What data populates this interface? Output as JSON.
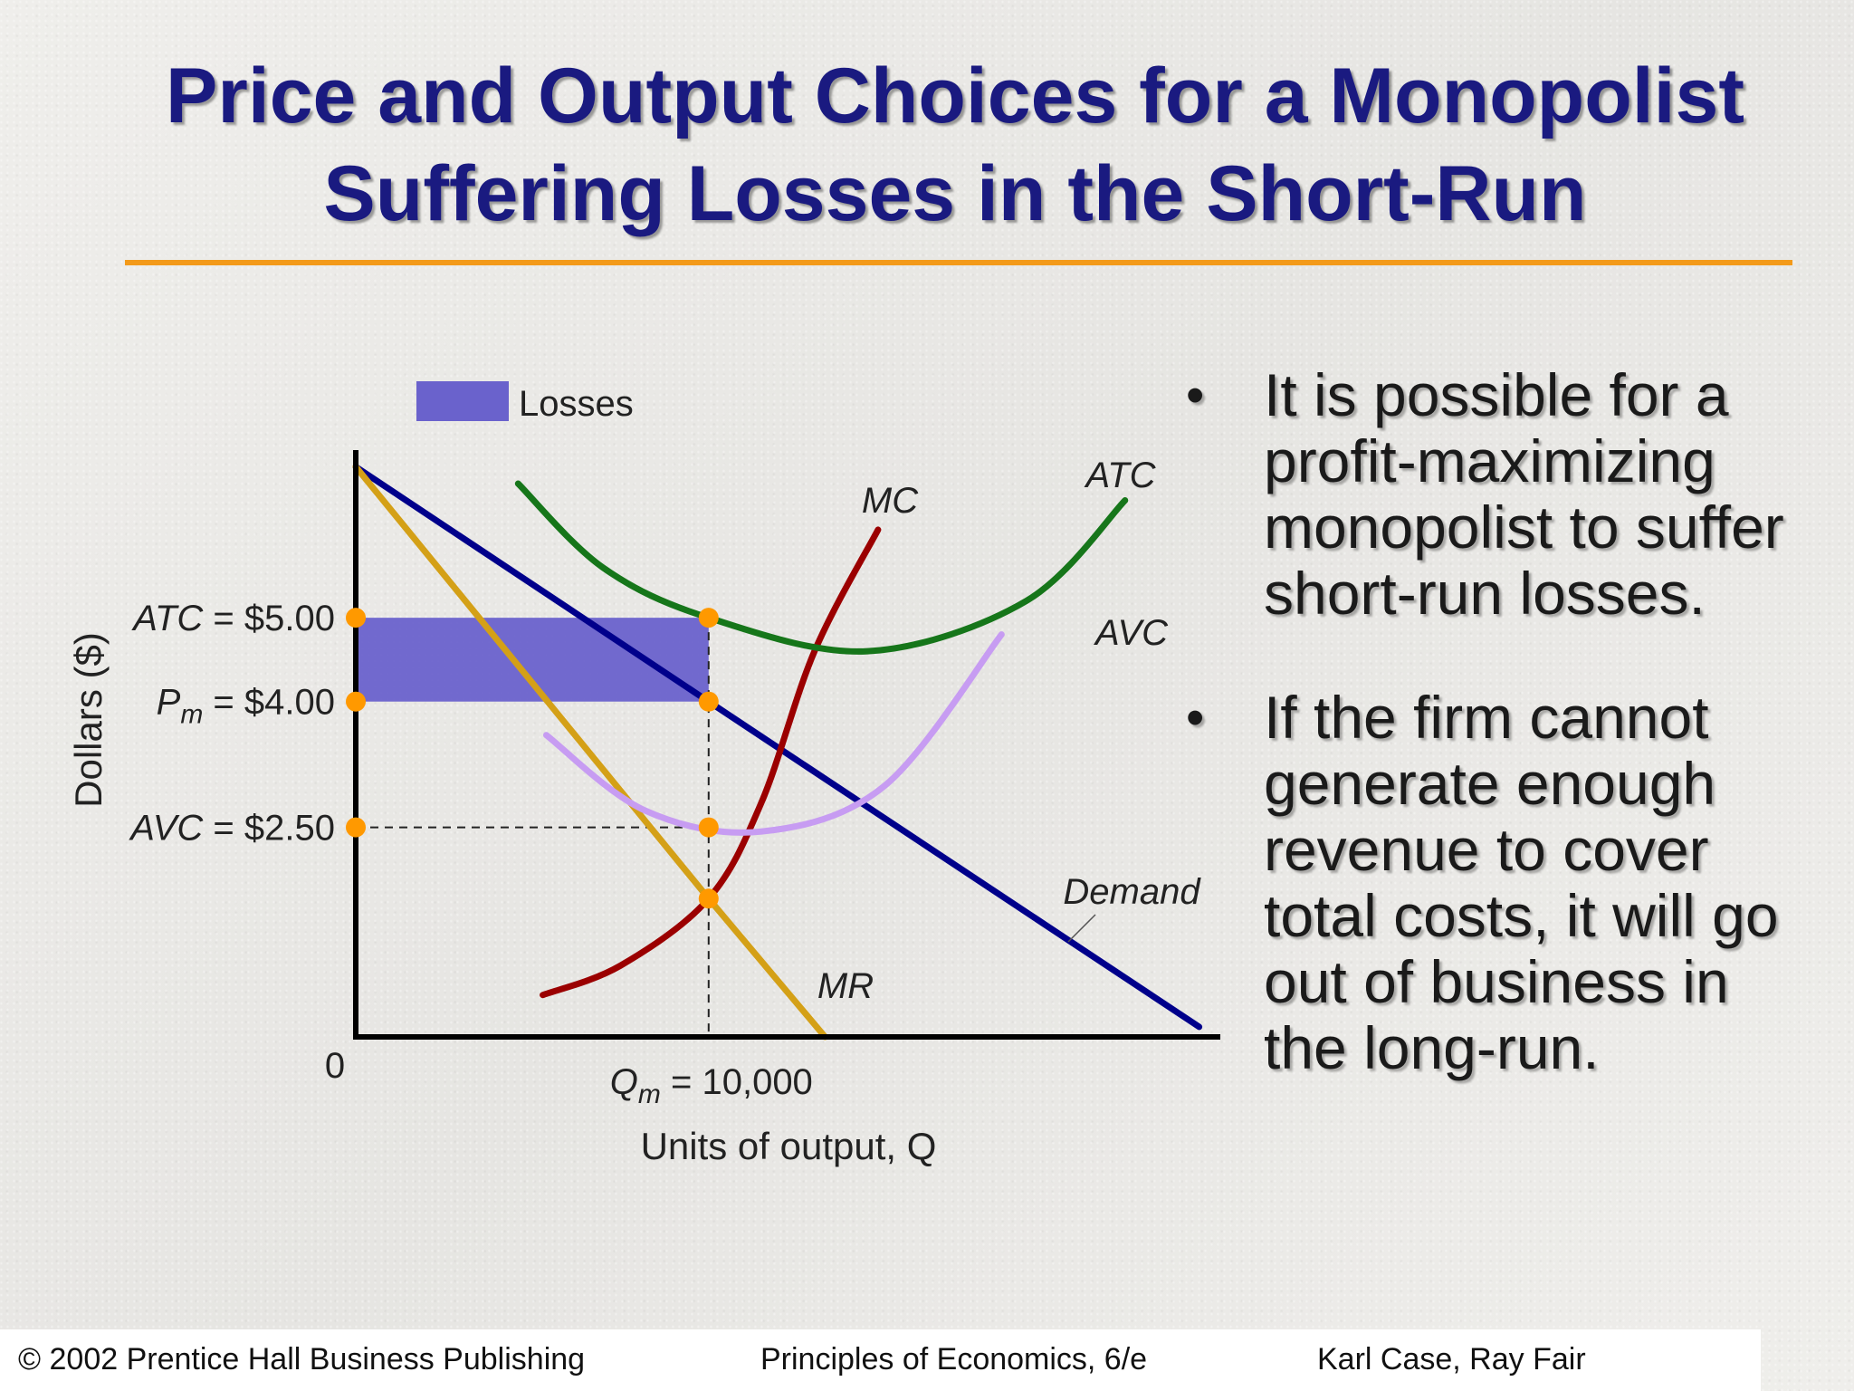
{
  "slide": {
    "title_line1": "Price and Output Choices for a Monopolist",
    "title_line2": "Suffering Losses in the Short-Run",
    "accent_color": "#f39a1a",
    "title_color": "#1a1a80"
  },
  "bullets": [
    "It is possible for a profit-maximizing monopolist to suffer short-run losses.",
    "If the firm cannot generate enough revenue to cover total costs, it will go out of business in the long-run."
  ],
  "footer": {
    "left": "© 2002 Prentice Hall Business Publishing",
    "center": "Principles of Economics, 6/e",
    "right": "Karl Case, Ray Fair"
  },
  "chart_data": {
    "type": "line",
    "xlabel": "Units of output, Q",
    "ylabel": "Dollars ($)",
    "origin_label": "0",
    "xlim": [
      0,
      24500
    ],
    "ylim": [
      0,
      7
    ],
    "legend": {
      "label": "Losses",
      "color": "#6a62cc",
      "placement": "top-left"
    },
    "y_markers": [
      {
        "name": "atc",
        "prefix": "ATC",
        "sub": "",
        "rest": " = $5.00",
        "value": 5.0
      },
      {
        "name": "pm",
        "prefix": "P",
        "sub": "m",
        "rest": " = $4.00",
        "value": 4.0
      },
      {
        "name": "avc",
        "prefix": "AVC",
        "sub": "",
        "rest": " = $2.50",
        "value": 2.5
      }
    ],
    "x_marker": {
      "prefix": "Q",
      "sub": "m",
      "rest": " = 10,000",
      "value": 10000
    },
    "series": [
      {
        "name": "Demand",
        "color": "#00008b",
        "x": [
          0,
          10000,
          23900
        ],
        "y": [
          6.8,
          4.0,
          0.12
        ]
      },
      {
        "name": "MR",
        "color": "#d4a017",
        "x": [
          0,
          10000,
          13300
        ],
        "y": [
          6.8,
          1.65,
          0.0
        ]
      },
      {
        "name": "MC",
        "color": "#9b0000",
        "x": [
          5300,
          7500,
          10000,
          11500,
          13000,
          14800
        ],
        "y": [
          0.5,
          0.85,
          1.65,
          2.8,
          4.6,
          6.05
        ]
      },
      {
        "name": "ATC",
        "color": "#16761a",
        "x": [
          4600,
          7000,
          10000,
          14500,
          19000,
          21800
        ],
        "y": [
          6.6,
          5.6,
          5.0,
          4.6,
          5.2,
          6.4
        ]
      },
      {
        "name": "AVC",
        "color": "#c79cf2",
        "x": [
          5400,
          8200,
          11500,
          15000,
          18300
        ],
        "y": [
          3.6,
          2.7,
          2.45,
          3.0,
          4.8
        ]
      }
    ],
    "losses_region": {
      "x": [
        0,
        10000
      ],
      "y": [
        4.0,
        5.0
      ]
    },
    "points": [
      {
        "x": 0,
        "y": 5.0
      },
      {
        "x": 10000,
        "y": 5.0
      },
      {
        "x": 0,
        "y": 4.0
      },
      {
        "x": 10000,
        "y": 4.0
      },
      {
        "x": 0,
        "y": 2.5
      },
      {
        "x": 10000,
        "y": 2.5
      },
      {
        "x": 10000,
        "y": 1.65
      }
    ],
    "point_color": "#ff9900"
  }
}
